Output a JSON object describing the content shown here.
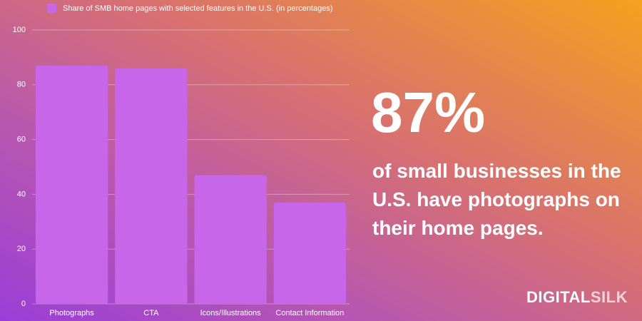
{
  "chart_data": {
    "type": "bar",
    "categories": [
      "Photographs",
      "CTA",
      "Icons/Illustrations",
      "Contact Information"
    ],
    "series": [
      {
        "name": "Share of SMB home pages with selected features in the U.S. (in percentages)",
        "color": "#c766e8",
        "values": [
          87,
          86,
          47,
          37
        ]
      }
    ],
    "ylim": [
      0,
      100
    ],
    "yticks": [
      0,
      20,
      40,
      60,
      80,
      100
    ],
    "grid": true,
    "legend": "top"
  },
  "callout": {
    "headline": "87%",
    "description_lines": [
      "of small businesses in the",
      "U.S. have photographs on",
      "their home pages."
    ]
  },
  "brand": {
    "first": "DIGITAL",
    "second": "SILK"
  }
}
